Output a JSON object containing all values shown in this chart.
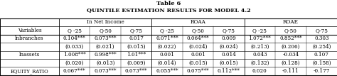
{
  "title1": "Table 6",
  "title2": "QUINTILE ESTIMATION RESULTS FOR MODEL 4.2",
  "col_groups": [
    "In Net Income",
    "ROAA",
    "ROAE"
  ],
  "sub_cols": [
    "Q -25",
    "Q-50",
    "Q-75",
    "Q -25",
    "Q-50",
    "Q-75",
    "Q -25",
    "Q-50",
    "Q-75"
  ],
  "rows": [
    [
      "lnbranches",
      "0.104***",
      "0.073***",
      "0.017",
      "0.071***",
      "0.064***",
      "0.009",
      "1.072***",
      "0.852***",
      "0.303"
    ],
    [
      "",
      "(0.033)",
      "(0.021)",
      "(0.015)",
      "(0.022)",
      "(0.024)",
      "(0.024)",
      "(0.213)",
      "(0.206)",
      "(0.254)"
    ],
    [
      "lnassets",
      "1.008***",
      "0.998***",
      "1.01***",
      "0.001",
      "0.001",
      "0.014",
      "0.043",
      "-0.034",
      "0.107"
    ],
    [
      "",
      "(0.020)",
      "(0.013)",
      "(0.009)",
      "(0.014)",
      "(0.015)",
      "(0.015)",
      "(0.132)",
      "(0.128)",
      "(0.158)"
    ],
    [
      "EQUITY_RATIO",
      "0.067***",
      "0.073***",
      "0.073***",
      "0.055***",
      "0.075***",
      "0.112***",
      "0.020",
      "-0.111",
      "-0.177"
    ]
  ],
  "bg_color": "#ffffff",
  "line_color": "#000000",
  "fs": 5.2,
  "tfs1": 6.0,
  "tfs2": 5.8
}
